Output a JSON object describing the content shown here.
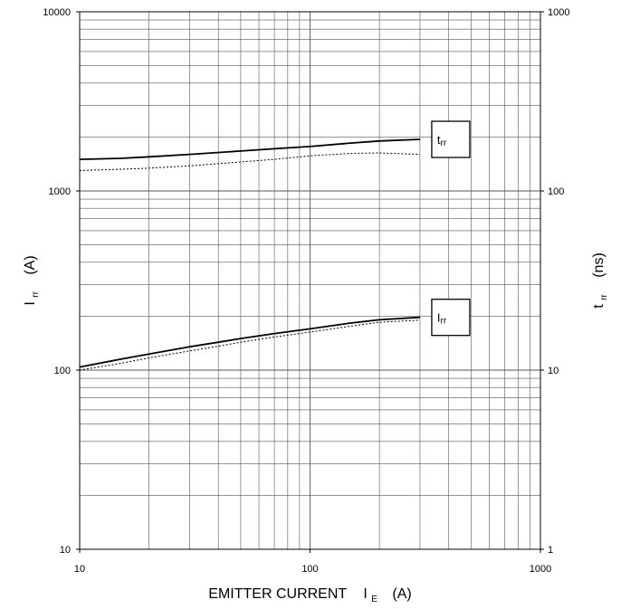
{
  "chart_data": {
    "type": "line",
    "x_scale": "log",
    "y_scale": "log",
    "xlim": [
      10,
      1000
    ],
    "ylim_left": [
      10,
      10000
    ],
    "ylim_right": [
      1,
      1000
    ],
    "grid": true,
    "x_ticks": [
      "10",
      "100",
      "1000"
    ],
    "y_left_ticks": [
      "10",
      "100",
      "1000",
      "10000"
    ],
    "y_right_ticks": [
      "1",
      "10",
      "100",
      "1000"
    ],
    "xlabel": {
      "main": "EMITTER CURRENT",
      "symbol": "I",
      "sub": "E",
      "unit": "(A)"
    },
    "ylabel_left": {
      "symbol": "I",
      "sub": "rr",
      "unit": "(A)"
    },
    "ylabel_right": {
      "symbol": "t",
      "sub": "rr",
      "unit": "(ns)"
    },
    "series": [
      {
        "name": "trr",
        "label_symbol": "t",
        "label_sub": "rr",
        "axis": "right",
        "x": [
          10,
          15,
          20,
          30,
          50,
          70,
          100,
          150,
          200,
          300
        ],
        "solid": [
          150,
          152,
          155,
          160,
          167,
          172,
          177,
          185,
          190,
          194
        ],
        "dotted": [
          130,
          132,
          134,
          138,
          145,
          150,
          157,
          162,
          163,
          160
        ]
      },
      {
        "name": "Irr",
        "label_symbol": "I",
        "label_sub": "rr",
        "axis": "left",
        "x": [
          10,
          15,
          20,
          30,
          40,
          50,
          70,
          100,
          150,
          200,
          300
        ],
        "solid": [
          104,
          115,
          123,
          135,
          143,
          150,
          160,
          170,
          183,
          191,
          197
        ],
        "dotted": [
          100,
          109,
          117,
          128,
          136,
          143,
          153,
          163,
          176,
          185,
          190
        ]
      }
    ]
  }
}
